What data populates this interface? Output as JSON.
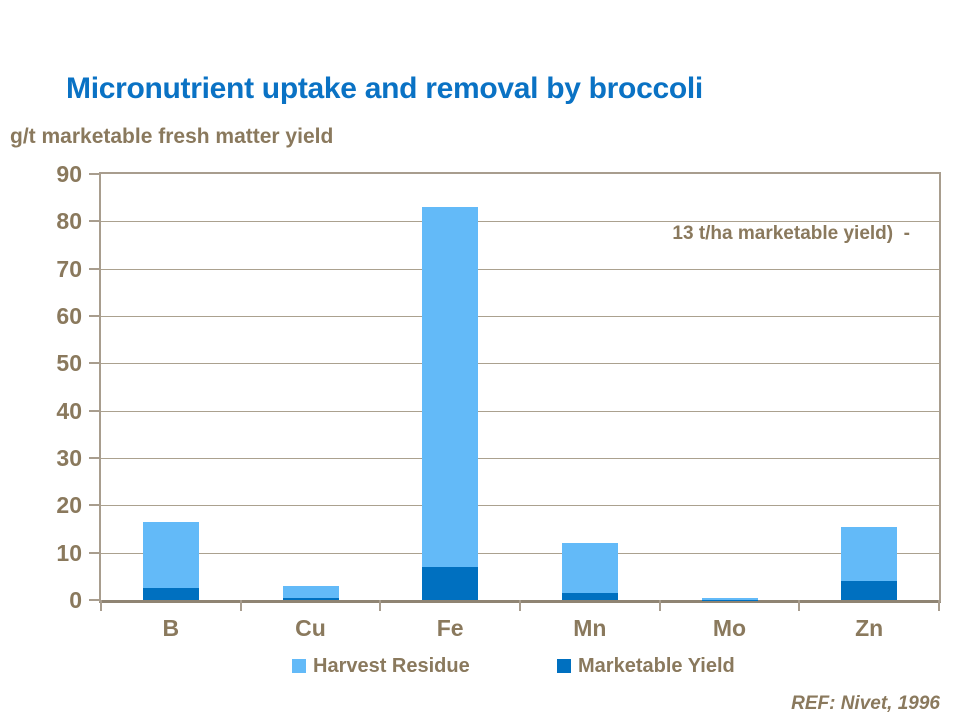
{
  "slide": {
    "title": "Micronutrient uptake and removal by broccoli",
    "y_axis_unit_label": "g/t marketable fresh matter yield",
    "annotation": "13 t/ha marketable yield)  -",
    "reference": "REF: Nivet, 1996"
  },
  "colors": {
    "title_blue": "#0a72c4",
    "text_brown": "#8a795d",
    "harvest_residue": "#63baf8",
    "marketable_yield": "#0070c0",
    "gridline": "#aba18f",
    "plot_border": "#a89d8e",
    "baseline": "#8f8473"
  },
  "chart_data": {
    "type": "bar",
    "stacked": true,
    "title": "Micronutrient uptake and removal by broccoli",
    "ylabel": "g/t marketable fresh matter yield",
    "xlabel": "",
    "categories": [
      "B",
      "Cu",
      "Fe",
      "Mn",
      "Mo",
      "Zn"
    ],
    "series": [
      {
        "name": "Harvest Residue",
        "color": "#63baf8",
        "values": [
          14,
          2.5,
          76,
          10.5,
          0.4,
          11.5
        ]
      },
      {
        "name": "Marketable Yield",
        "color": "#0070c0",
        "values": [
          2.5,
          0.5,
          7,
          1.5,
          0.1,
          4
        ]
      }
    ],
    "stack_order_bottom_up": [
      "Marketable Yield",
      "Harvest Residue"
    ],
    "stacked_totals": [
      16.5,
      3,
      83,
      12,
      0.5,
      15.5
    ],
    "ylim": [
      0,
      90
    ],
    "yticks": [
      0,
      10,
      20,
      30,
      40,
      50,
      60,
      70,
      80,
      90
    ],
    "grid": true,
    "legend_position": "bottom",
    "annotations": [
      "13 t/ha marketable yield)  -"
    ]
  }
}
